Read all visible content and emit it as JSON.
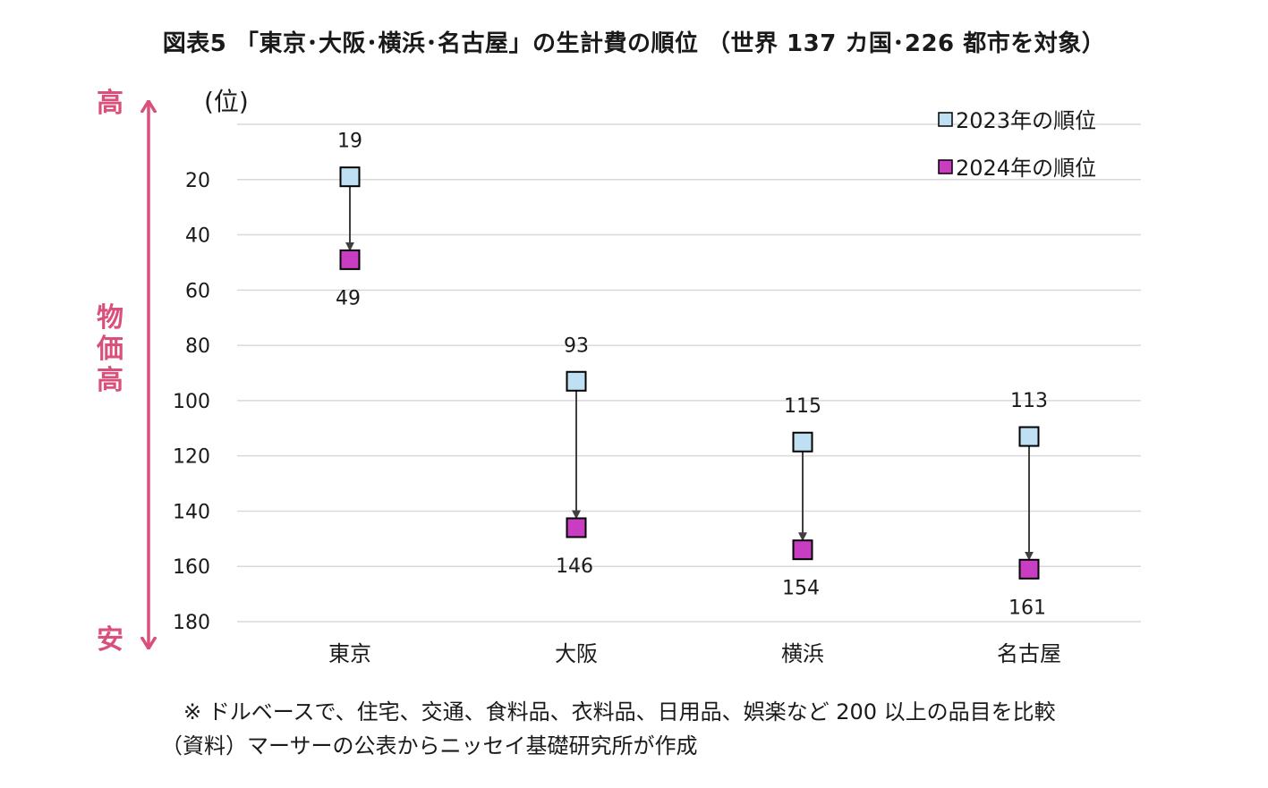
{
  "title": "図表5 「東京･大阪･横浜･名古屋」の生計費の順位 （世界 137 カ国･226 都市を対象）",
  "side_labels": {
    "high": "高",
    "middle": "物価高",
    "low": "安"
  },
  "notes": [
    "※ ドルベースで、住宅、交通、食料品、衣料品、日用品、娯楽など 200 以上の品目を比較",
    "（資料）マーサーの公表からニッセイ基礎研究所が作成"
  ],
  "colors": {
    "accent": "#d9507a",
    "series_2023": "#bfe0f3",
    "series_2024": "#c93dc3",
    "grid": "#d9d9d9",
    "arrow": "#404040"
  },
  "chart_data": {
    "type": "scatter",
    "title": "",
    "ylabel": "(位)",
    "xlabel": "",
    "categories": [
      "東京",
      "大阪",
      "横浜",
      "名古屋"
    ],
    "series": [
      {
        "name": "2023年の順位",
        "values": [
          19,
          93,
          115,
          113
        ]
      },
      {
        "name": "2024年の順位",
        "values": [
          49,
          146,
          154,
          161
        ]
      }
    ],
    "ylim": [
      0,
      180
    ],
    "y_inverted": true,
    "yticks": [
      20,
      40,
      60,
      80,
      100,
      120,
      140,
      160,
      180
    ],
    "grid": true,
    "legend_position": "top-right",
    "arrows": "2023 to 2024 per city"
  }
}
